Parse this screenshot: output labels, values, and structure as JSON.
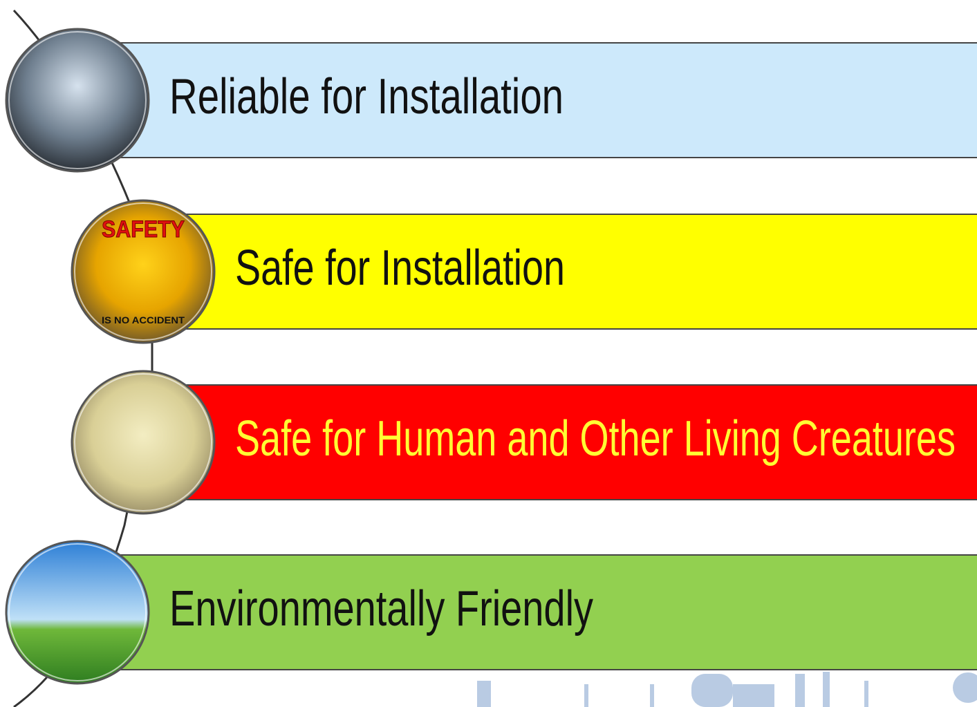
{
  "items": [
    {
      "label": "Reliable for Installation"
    },
    {
      "label": "Safe for Installation",
      "icon_text": [
        "SAFETY",
        "IS NO ACCIDENT"
      ]
    },
    {
      "label": "Safe for Human and Other Living Creatures"
    },
    {
      "label": "Environmentally Friendly"
    }
  ]
}
